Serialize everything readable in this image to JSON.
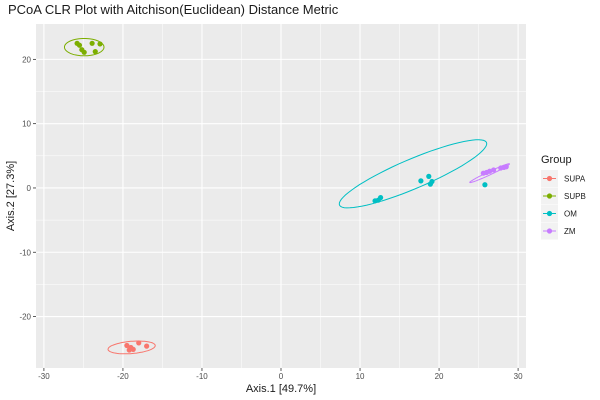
{
  "chart_data": {
    "type": "scatter",
    "title": "PCoA CLR Plot with Aitchison(Euclidean) Distance Metric",
    "xlabel": "Axis.1   [49.7%]",
    "ylabel": "Axis.2   [27.3%]",
    "xlim": [
      -31,
      31
    ],
    "ylim": [
      -28,
      25.5
    ],
    "x_ticks": [
      -30,
      -20,
      -10,
      0,
      10,
      20,
      30
    ],
    "y_ticks": [
      -20,
      -10,
      0,
      10,
      20
    ],
    "x_tick_labels": [
      "-30",
      "-20",
      "-10",
      "0",
      "10",
      "20",
      "30"
    ],
    "y_tick_labels": [
      "-20",
      "-10",
      "0",
      "10",
      "20"
    ],
    "grid": true,
    "legend": {
      "title": "Group",
      "placement": "right"
    },
    "series": [
      {
        "name": "SUPA",
        "color": "#F8766D",
        "points": [
          [
            -19.5,
            -24.5
          ],
          [
            -19.2,
            -25.2
          ],
          [
            -19.0,
            -24.8
          ],
          [
            -18.7,
            -25.1
          ],
          [
            -18.0,
            -24.1
          ],
          [
            -17.0,
            -24.6
          ]
        ],
        "ellipse": {
          "cx": -18.9,
          "cy": -24.8,
          "rx": 3.0,
          "ry": 0.95,
          "angle": 6
        }
      },
      {
        "name": "SUPB",
        "color": "#7CAE00",
        "points": [
          [
            -25.8,
            22.5
          ],
          [
            -25.5,
            22.2
          ],
          [
            -25.2,
            21.5
          ],
          [
            -24.9,
            21.1
          ],
          [
            -23.9,
            22.5
          ],
          [
            -23.5,
            21.2
          ],
          [
            -22.9,
            22.4
          ]
        ],
        "ellipse": {
          "cx": -24.9,
          "cy": 21.9,
          "rx": 2.5,
          "ry": 1.35,
          "angle": 0
        }
      },
      {
        "name": "OM",
        "color": "#00BFC4",
        "points": [
          [
            11.9,
            -2.0
          ],
          [
            12.3,
            -1.9
          ],
          [
            12.6,
            -1.5
          ],
          [
            17.7,
            1.1
          ],
          [
            18.7,
            1.8
          ],
          [
            18.9,
            0.6
          ],
          [
            19.1,
            1.0
          ],
          [
            25.8,
            0.5
          ]
        ],
        "ellipse": {
          "cx": 16.7,
          "cy": 2.2,
          "rx": 10.5,
          "ry": 2.2,
          "angle": 28
        }
      },
      {
        "name": "ZM",
        "color": "#C77CFF",
        "points": [
          [
            25.6,
            2.3
          ],
          [
            26.0,
            2.4
          ],
          [
            26.4,
            2.6
          ],
          [
            26.9,
            2.8
          ],
          [
            27.8,
            3.1
          ],
          [
            28.2,
            3.2
          ],
          [
            28.5,
            3.3
          ]
        ],
        "ellipse": {
          "cx": 26.4,
          "cy": 2.3,
          "rx": 2.9,
          "ry": 0.25,
          "angle": 30
        }
      }
    ]
  }
}
